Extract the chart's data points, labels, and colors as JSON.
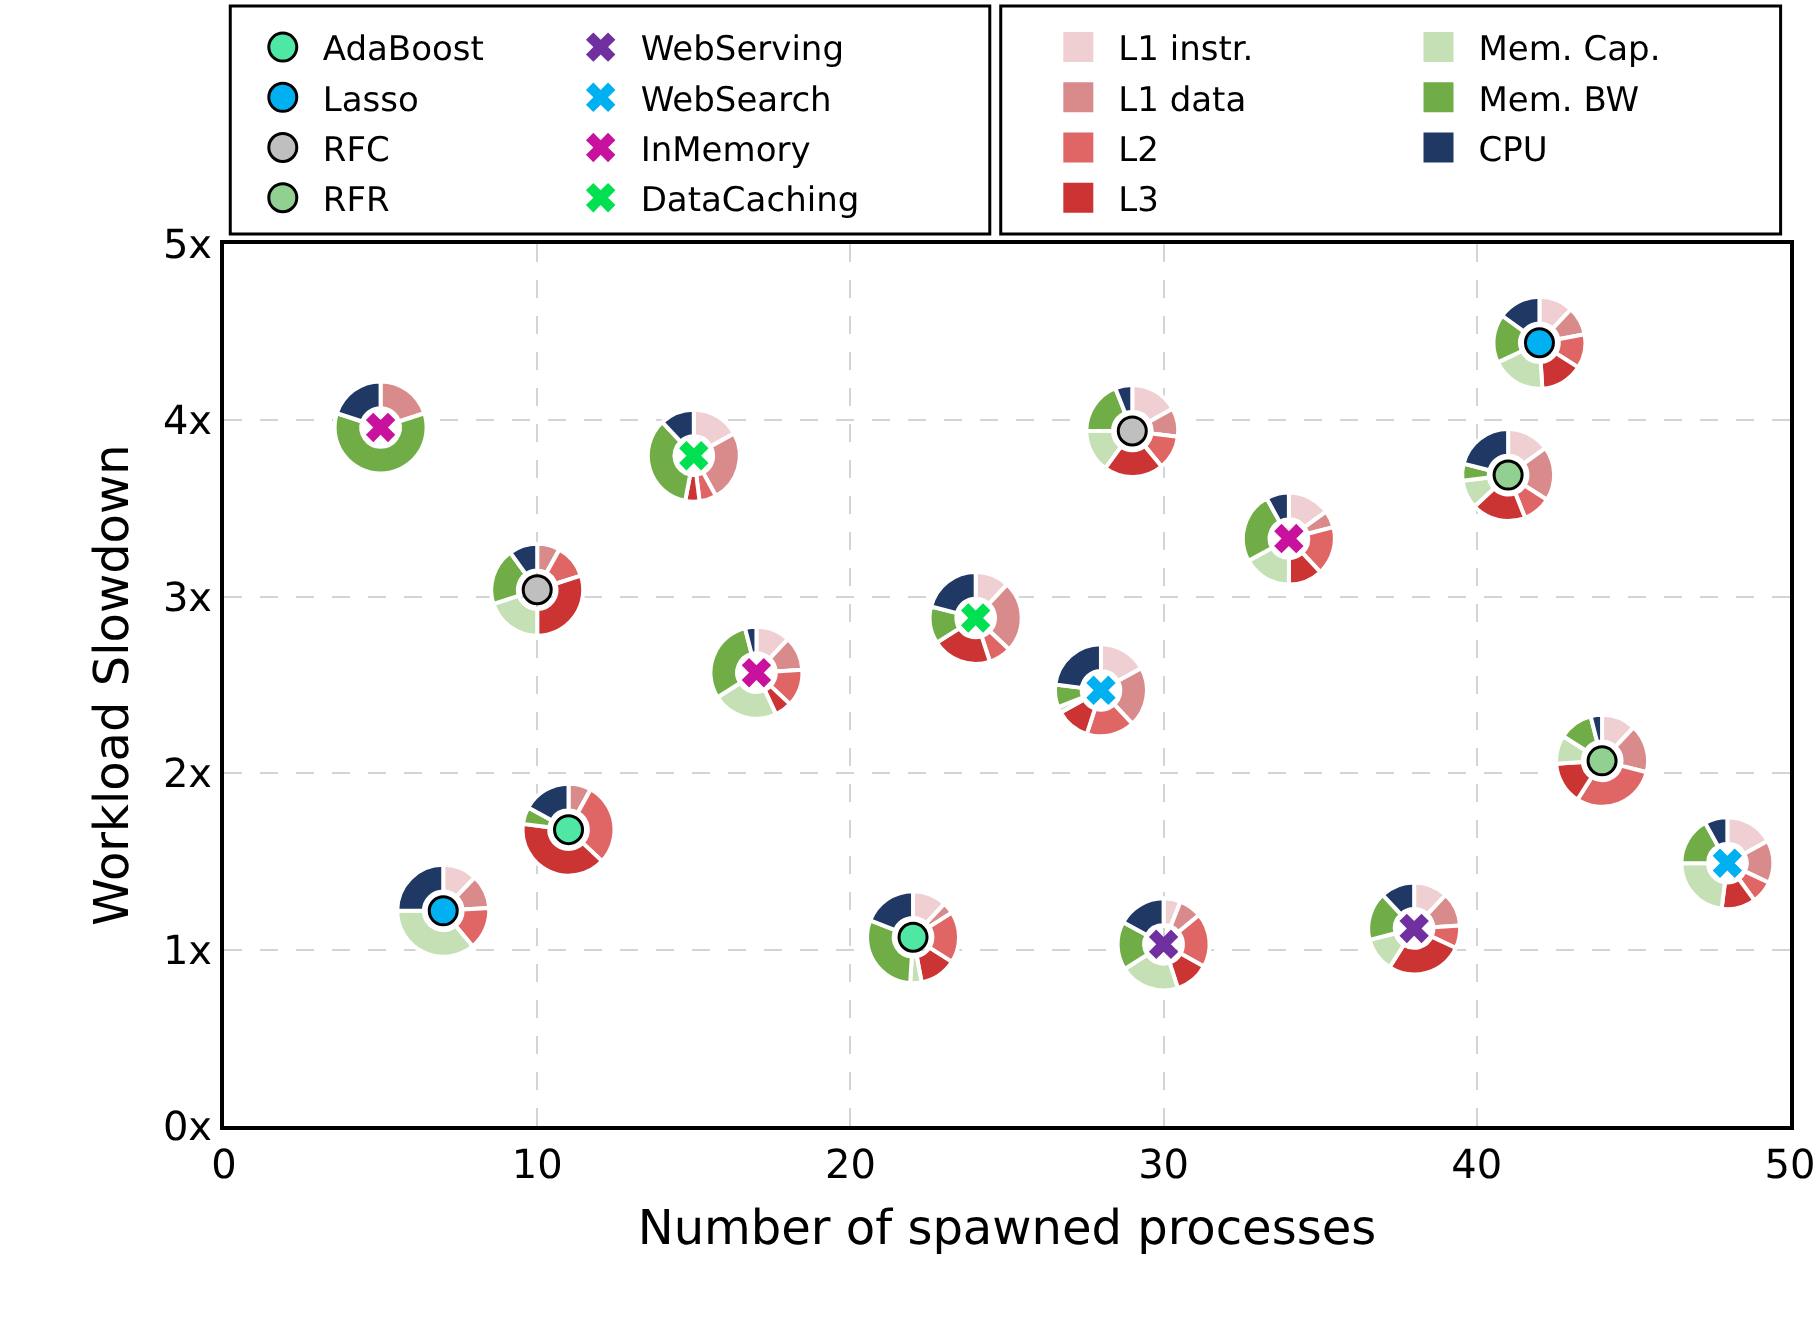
{
  "chart_data": [
    {
      "type": "scatter",
      "xlabel": "Number of spawned processes",
      "ylabel": "Workload Slowdown",
      "xlim": [
        0,
        50
      ],
      "ylim": [
        0,
        5
      ],
      "xticks": [
        0,
        10,
        20,
        30,
        40,
        50
      ],
      "yticks": [
        {
          "value": 0,
          "label": "0x"
        },
        {
          "value": 1,
          "label": "1x"
        },
        {
          "value": 2,
          "label": "2x"
        },
        {
          "value": 3,
          "label": "3x"
        },
        {
          "value": 4,
          "label": "4x"
        },
        {
          "value": 5,
          "label": "5x"
        }
      ],
      "grid": true,
      "legend": "top",
      "series": [
        {
          "name": "AdaBoost",
          "color": "#4ee8a4",
          "marker": "circle",
          "x": [
            11,
            22
          ],
          "values": [
            1.68,
            1.07
          ]
        },
        {
          "name": "Lasso",
          "color": "#00b0f0",
          "marker": "circle",
          "x": [
            7,
            42
          ],
          "values": [
            1.22,
            4.44
          ]
        },
        {
          "name": "RFC",
          "color": "#bfbfbf",
          "marker": "circle",
          "x": [
            10,
            29
          ],
          "values": [
            3.04,
            3.94
          ]
        },
        {
          "name": "RFR",
          "color": "#92d092",
          "marker": "circle",
          "x": [
            41,
            44
          ],
          "values": [
            3.69,
            2.07
          ]
        },
        {
          "name": "WebServing",
          "color": "#7030a0",
          "marker": "cross",
          "x": [
            30,
            38
          ],
          "values": [
            1.03,
            1.12
          ]
        },
        {
          "name": "WebSearch",
          "color": "#00b0f0",
          "marker": "cross",
          "x": [
            28,
            48
          ],
          "values": [
            2.47,
            1.49
          ]
        },
        {
          "name": "InMemory",
          "color": "#c8119c",
          "marker": "cross",
          "x": [
            5,
            17,
            34
          ],
          "values": [
            3.96,
            2.57,
            3.33
          ]
        },
        {
          "name": "DataCaching",
          "color": "#00e050",
          "marker": "cross",
          "x": [
            15,
            24
          ],
          "values": [
            3.8,
            2.88
          ]
        }
      ]
    },
    {
      "type": "donut",
      "legend": "top",
      "categories": [
        "L1 instr.",
        "L1 data",
        "L2",
        "L3",
        "Mem. Cap.",
        "Mem. BW",
        "CPU"
      ],
      "colors": [
        "#f0cfd3",
        "#d98a8a",
        "#e06666",
        "#cc3333",
        "#c5e0b4",
        "#70ad47",
        "#1f3864"
      ],
      "values": [
        0,
        8,
        29,
        40,
        0,
        6,
        17
      ]
    },
    {
      "type": "donut",
      "values": [
        12,
        4,
        18,
        13,
        4,
        30,
        19
      ]
    },
    {
      "type": "donut",
      "values": [
        12,
        12,
        15,
        0,
        36,
        0,
        25
      ]
    },
    {
      "type": "donut",
      "values": [
        12,
        10,
        12,
        15,
        19,
        17,
        15
      ]
    },
    {
      "type": "donut",
      "values": [
        0,
        8,
        12,
        30,
        20,
        20,
        10
      ]
    },
    {
      "type": "donut",
      "values": [
        17,
        10,
        12,
        21,
        15,
        19,
        6
      ]
    },
    {
      "type": "donut",
      "values": [
        15,
        19,
        10,
        19,
        10,
        6,
        21
      ]
    },
    {
      "type": "donut",
      "values": [
        12,
        17,
        30,
        15,
        10,
        12,
        4
      ]
    },
    {
      "type": "donut",
      "values": [
        6,
        8,
        19,
        12,
        21,
        17,
        17
      ]
    },
    {
      "type": "donut",
      "values": [
        12,
        12,
        8,
        27,
        12,
        17,
        12
      ]
    },
    {
      "type": "donut",
      "values": [
        17,
        21,
        17,
        12,
        2,
        8,
        23
      ]
    },
    {
      "type": "donut",
      "values": [
        17,
        15,
        8,
        12,
        23,
        17,
        8
      ]
    },
    {
      "type": "donut",
      "values": [
        0,
        20,
        0,
        0,
        0,
        60,
        20
      ]
    },
    {
      "type": "donut",
      "values": [
        12,
        12,
        13,
        6,
        23,
        30,
        4
      ]
    },
    {
      "type": "donut",
      "values": [
        15,
        6,
        17,
        12,
        17,
        25,
        8
      ]
    },
    {
      "type": "donut",
      "values": [
        17,
        25,
        6,
        5,
        0,
        35,
        12
      ]
    },
    {
      "type": "donut",
      "values": [
        12,
        25,
        8,
        21,
        0,
        13,
        21
      ]
    }
  ]
}
